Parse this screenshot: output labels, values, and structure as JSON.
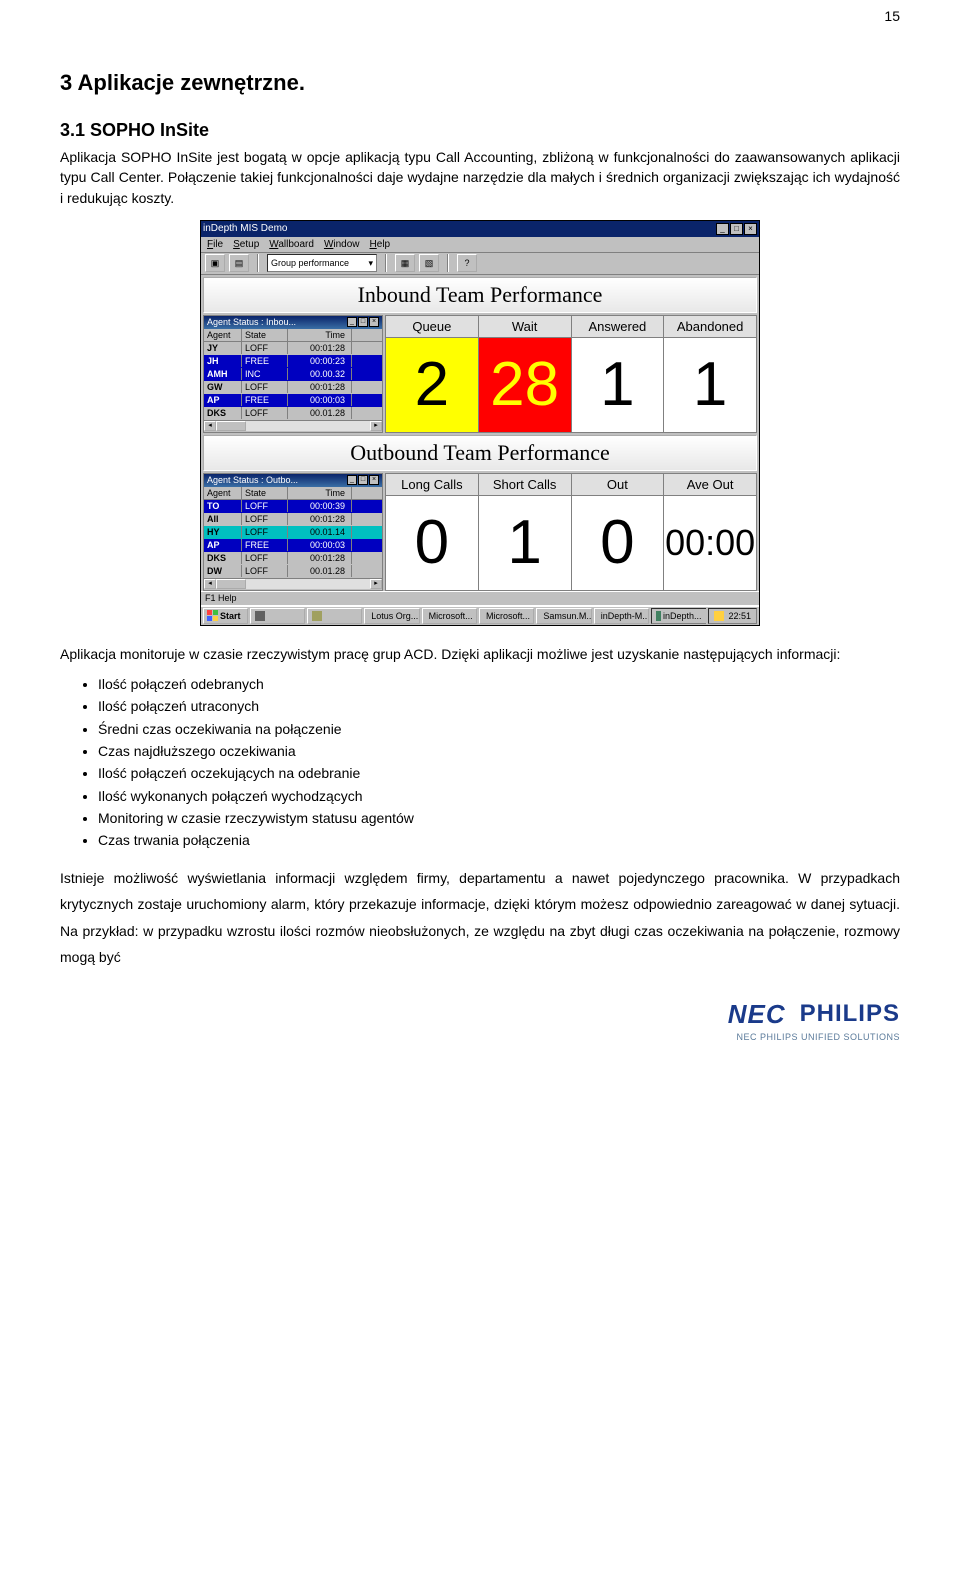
{
  "page_number": "15",
  "document": {
    "h1": "3  Aplikacje zewnętrzne.",
    "h2": "3.1  SOPHO InSite",
    "p1": "Aplikacja SOPHO InSite jest bogatą w opcje aplikacją typu Call Accounting, zbliżoną w funkcjonalności do zaawansowanych aplikacji typu Call Center. Połączenie takiej funkcjonalności daje wydajne narzędzie dla małych i średnich organizacji zwiększając ich wydajność i redukując koszty.",
    "p2": "Aplikacja monitoruje w czasie rzeczywistym pracę grup ACD. Dzięki aplikacji możliwe jest uzyskanie następujących informacji:",
    "bullets": [
      "Ilość połączeń odebranych",
      "Ilość połączeń utraconych",
      "Średni czas oczekiwania na połączenie",
      "Czas najdłuższego oczekiwania",
      "Ilość połączeń oczekujących na odebranie",
      "Ilość wykonanych połączeń wychodzących",
      "Monitoring w czasie rzeczywistym statusu agentów",
      "Czas trwania połączenia"
    ],
    "p3": "Istnieje możliwość wyświetlania informacji względem firmy, departamentu a nawet pojedynczego pracownika. W przypadkach krytycznych zostaje uruchomiony alarm, który przekazuje informacje, dzięki którym możesz odpowiednio zareagować w danej sytuacji. Na przykład: w przypadku wzrostu ilości rozmów nieobsłużonych, ze względu na zbyt długi czas oczekiwania na połączenie, rozmowy mogą być"
  },
  "footer": {
    "nec": "NEC",
    "philips": "PHILIPS",
    "tagline": "NEC PHILIPS UNIFIED SOLUTIONS"
  },
  "screenshot": {
    "colors": {
      "win_bg": "#c0c0c0",
      "titlebar": "#0a246a",
      "highlight_yellow_bg": "#ffff00",
      "highlight_yellow_fg": "#000000",
      "highlight_red_bg": "#ff0000",
      "highlight_red_fg": "#ffff00",
      "row_blue_bg": "#0000c0",
      "row_blue_fg": "#ffffff",
      "row_cyan_bg": "#00c0c0",
      "row_cyan_fg": "#000000",
      "grey_header_bg": "#c0c0c0"
    },
    "title": "inDepth MIS Demo",
    "menu": [
      "File",
      "Setup",
      "Wallboard",
      "Window",
      "Help"
    ],
    "toolbar": {
      "dropdown": "Group performance"
    },
    "inbound": {
      "header": "Inbound Team Performance",
      "agent_title": "Agent Status : Inbou...",
      "columns": [
        "Agent",
        "State",
        "Time"
      ],
      "rows": [
        {
          "agent": "JY",
          "state": "LOFF",
          "time": "00:01:28",
          "bg": "#c0c0c0",
          "fg": "#000000"
        },
        {
          "agent": "JH",
          "state": "FREE",
          "time": "00:00:23",
          "bg": "#0000c0",
          "fg": "#ffffff"
        },
        {
          "agent": "AMH",
          "state": "INC",
          "time": "00.00.32",
          "bg": "#0000c0",
          "fg": "#ffffff"
        },
        {
          "agent": "GW",
          "state": "LOFF",
          "time": "00:01:28",
          "bg": "#c0c0c0",
          "fg": "#000000"
        },
        {
          "agent": "AP",
          "state": "FREE",
          "time": "00:00:03",
          "bg": "#0000c0",
          "fg": "#ffffff"
        },
        {
          "agent": "DKS",
          "state": "LOFF",
          "time": "00.01.28",
          "bg": "#c0c0c0",
          "fg": "#000000"
        }
      ],
      "stats": [
        {
          "label": "Queue",
          "value": "2",
          "bg": "#ffff00",
          "fg": "#000000"
        },
        {
          "label": "Wait",
          "value": "28",
          "bg": "#ff0000",
          "fg": "#ffff00"
        },
        {
          "label": "Answered",
          "value": "1",
          "bg": "#ffffff",
          "fg": "#000000"
        },
        {
          "label": "Abandoned",
          "value": "1",
          "bg": "#ffffff",
          "fg": "#000000"
        }
      ]
    },
    "outbound": {
      "header": "Outbound Team Performance",
      "agent_title": "Agent Status : Outbo...",
      "columns": [
        "Agent",
        "State",
        "Time"
      ],
      "rows": [
        {
          "agent": "TO",
          "state": "LOFF",
          "time": "00:00:39",
          "bg": "#0000c0",
          "fg": "#ffffff"
        },
        {
          "agent": "All",
          "state": "LOFF",
          "time": "00:01:28",
          "bg": "#c0c0c0",
          "fg": "#000000"
        },
        {
          "agent": "HY",
          "state": "LOFF",
          "time": "00.01.14",
          "bg": "#00c0c0",
          "fg": "#000000"
        },
        {
          "agent": "AP",
          "state": "FREE",
          "time": "00:00:03",
          "bg": "#0000c0",
          "fg": "#ffffff"
        },
        {
          "agent": "DKS",
          "state": "LOFF",
          "time": "00:01:28",
          "bg": "#c0c0c0",
          "fg": "#000000"
        },
        {
          "agent": "DW",
          "state": "LOFF",
          "time": "00.01.28",
          "bg": "#c0c0c0",
          "fg": "#000000"
        }
      ],
      "stats": [
        {
          "label": "Long Calls",
          "value": "0",
          "bg": "#ffffff",
          "fg": "#000000"
        },
        {
          "label": "Short Calls",
          "value": "1",
          "bg": "#ffffff",
          "fg": "#000000"
        },
        {
          "label": "Out",
          "value": "0",
          "bg": "#ffffff",
          "fg": "#000000"
        },
        {
          "label": "Ave Out",
          "value": "00:00",
          "bg": "#ffffff",
          "fg": "#000000",
          "fs": "36px"
        }
      ]
    },
    "status": "F1  Help",
    "taskbar": {
      "start": "Start",
      "buttons": [
        "",
        "",
        "Lotus Org...",
        "Microsoft...",
        "Microsoft...",
        "Samsun.M...",
        "inDepth-M...",
        "inDepth..."
      ],
      "pressed_index": 7,
      "tray_time": "22:51"
    }
  }
}
